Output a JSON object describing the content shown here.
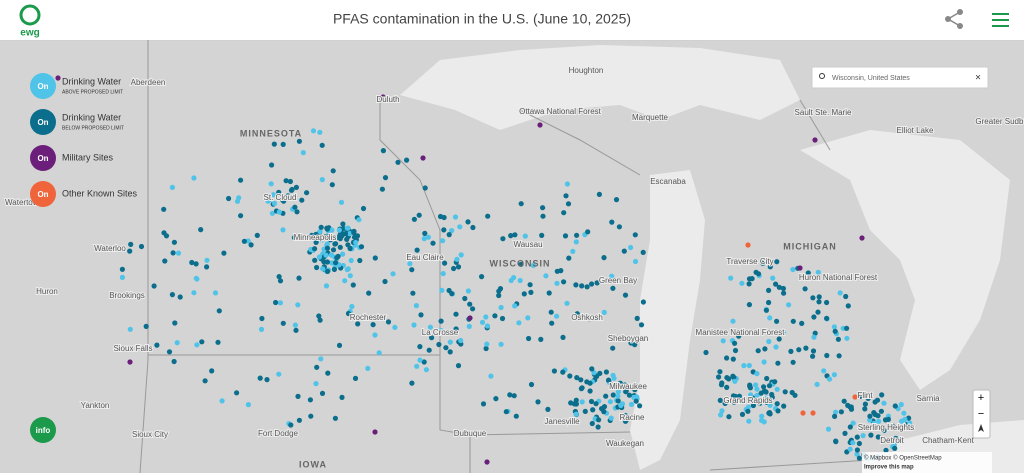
{
  "header": {
    "logo": "ewg",
    "title": "PFAS contamination in the U.S. (June 10, 2025)"
  },
  "legend": [
    {
      "button": "On",
      "label": "Drinking Water",
      "sublabel": "ABOVE PROPOSED LIMIT"
    },
    {
      "button": "On",
      "label": "Drinking Water",
      "sublabel": "BELOW PROPOSED LIMIT"
    },
    {
      "button": "On",
      "label": "Military Sites"
    },
    {
      "button": "On",
      "label": "Other Known Sites"
    }
  ],
  "info_button": "info",
  "search": {
    "value": "Wisconsin, United States",
    "clear": "×"
  },
  "zoom": {
    "in": "+",
    "out": "−"
  },
  "attribution": {
    "credits": "© Mapbox © OpenStreetMap",
    "link": "Improve this map"
  },
  "map_labels": [
    "Houghton",
    "Duluth",
    "Ottawa National Forest",
    "Marquette",
    "Sault Ste. Marie",
    "Elliot Lake",
    "Greater Sudbury",
    "MINNESOTA",
    "Escanaba",
    "MICHIGAN",
    "Traverse City",
    "Huron National Forest",
    "WISCONSIN",
    "Wausau",
    "Eau Claire",
    "Green Bay",
    "Oshkosh",
    "Rochester",
    "La Crosse",
    "Sheboygan",
    "Manistee National Forest",
    "Milwaukee",
    "Grand Rapids",
    "Flint",
    "Sarnia",
    "Racine",
    "Janesville",
    "Detroit",
    "Sterling Heights",
    "Chatham-Kent",
    "Waterloo",
    "Fort Dodge",
    "Sioux Falls",
    "Yankton",
    "Sioux City",
    "IOWA",
    "Watertown",
    "Huron",
    "Brookings",
    "Aberdeen",
    "Dubuque",
    "Waukegan",
    "St. Cloud",
    "Minneapolis"
  ]
}
